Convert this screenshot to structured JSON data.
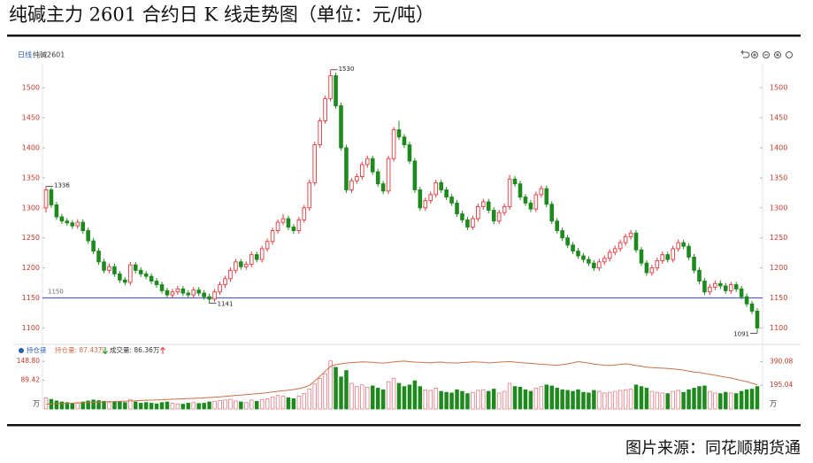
{
  "chart_data": {
    "type": "candlestick",
    "title": "纯碱主力 2601 合约日 K 线走势图（单位：元/吨）",
    "source": "图片来源：同花顺期货通",
    "period": "日线",
    "symbol": "纯碱2601",
    "up_color": "#e0393e",
    "down_color": "#1e8a1e",
    "ylim": [
      1080,
      1540
    ],
    "yticks": [
      1100,
      1150,
      1200,
      1250,
      1300,
      1350,
      1400,
      1450,
      1500
    ],
    "reference_line": {
      "value": 1150,
      "color": "#6262b8"
    },
    "annotations": [
      1530,
      1336,
      1141,
      1091
    ],
    "candles": [
      [
        1300,
        1336,
        1292,
        1330
      ],
      [
        1330,
        1334,
        1300,
        1305
      ],
      [
        1305,
        1310,
        1280,
        1285
      ],
      [
        1285,
        1290,
        1273,
        1278
      ],
      [
        1278,
        1283,
        1270,
        1275
      ],
      [
        1275,
        1280,
        1265,
        1270
      ],
      [
        1270,
        1281,
        1265,
        1276
      ],
      [
        1276,
        1281,
        1257,
        1262
      ],
      [
        1262,
        1267,
        1240,
        1245
      ],
      [
        1245,
        1250,
        1223,
        1228
      ],
      [
        1228,
        1233,
        1205,
        1210
      ],
      [
        1210,
        1215,
        1191,
        1196
      ],
      [
        1196,
        1207,
        1191,
        1202
      ],
      [
        1202,
        1207,
        1185,
        1190
      ],
      [
        1190,
        1195,
        1175,
        1180
      ],
      [
        1180,
        1185,
        1171,
        1176
      ],
      [
        1176,
        1210,
        1171,
        1205
      ],
      [
        1205,
        1210,
        1191,
        1196
      ],
      [
        1196,
        1201,
        1185,
        1190
      ],
      [
        1190,
        1195,
        1181,
        1186
      ],
      [
        1186,
        1191,
        1173,
        1178
      ],
      [
        1178,
        1183,
        1167,
        1172
      ],
      [
        1172,
        1177,
        1157,
        1162
      ],
      [
        1162,
        1167,
        1150,
        1155
      ],
      [
        1155,
        1165,
        1150,
        1160
      ],
      [
        1160,
        1170,
        1155,
        1165
      ],
      [
        1165,
        1170,
        1153,
        1158
      ],
      [
        1158,
        1163,
        1150,
        1155
      ],
      [
        1155,
        1168,
        1150,
        1163
      ],
      [
        1163,
        1168,
        1153,
        1158
      ],
      [
        1158,
        1163,
        1147,
        1152
      ],
      [
        1152,
        1157,
        1141,
        1148
      ],
      [
        1148,
        1165,
        1143,
        1160
      ],
      [
        1160,
        1177,
        1155,
        1172
      ],
      [
        1172,
        1187,
        1167,
        1182
      ],
      [
        1182,
        1201,
        1177,
        1196
      ],
      [
        1196,
        1215,
        1191,
        1210
      ],
      [
        1210,
        1215,
        1197,
        1202
      ],
      [
        1202,
        1211,
        1197,
        1206
      ],
      [
        1206,
        1227,
        1201,
        1222
      ],
      [
        1222,
        1227,
        1209,
        1214
      ],
      [
        1214,
        1237,
        1209,
        1232
      ],
      [
        1232,
        1249,
        1227,
        1244
      ],
      [
        1244,
        1267,
        1239,
        1262
      ],
      [
        1262,
        1281,
        1257,
        1276
      ],
      [
        1276,
        1290,
        1271,
        1282
      ],
      [
        1282,
        1287,
        1263,
        1268
      ],
      [
        1268,
        1273,
        1257,
        1262
      ],
      [
        1262,
        1285,
        1257,
        1280
      ],
      [
        1280,
        1305,
        1275,
        1300
      ],
      [
        1300,
        1347,
        1295,
        1342
      ],
      [
        1342,
        1410,
        1337,
        1405
      ],
      [
        1405,
        1450,
        1400,
        1445
      ],
      [
        1445,
        1487,
        1440,
        1482
      ],
      [
        1482,
        1530,
        1477,
        1520
      ],
      [
        1520,
        1525,
        1465,
        1470
      ],
      [
        1470,
        1475,
        1395,
        1400
      ],
      [
        1400,
        1405,
        1325,
        1330
      ],
      [
        1330,
        1350,
        1325,
        1345
      ],
      [
        1345,
        1357,
        1340,
        1352
      ],
      [
        1352,
        1377,
        1347,
        1372
      ],
      [
        1372,
        1387,
        1367,
        1382
      ],
      [
        1382,
        1387,
        1355,
        1360
      ],
      [
        1360,
        1365,
        1335,
        1340
      ],
      [
        1340,
        1345,
        1323,
        1328
      ],
      [
        1328,
        1387,
        1323,
        1382
      ],
      [
        1382,
        1435,
        1377,
        1430
      ],
      [
        1430,
        1445,
        1413,
        1418
      ],
      [
        1418,
        1423,
        1400,
        1405
      ],
      [
        1405,
        1410,
        1373,
        1378
      ],
      [
        1378,
        1383,
        1325,
        1330
      ],
      [
        1330,
        1335,
        1295,
        1300
      ],
      [
        1300,
        1317,
        1295,
        1312
      ],
      [
        1312,
        1327,
        1307,
        1322
      ],
      [
        1322,
        1347,
        1317,
        1342
      ],
      [
        1342,
        1347,
        1325,
        1330
      ],
      [
        1330,
        1335,
        1313,
        1318
      ],
      [
        1318,
        1323,
        1303,
        1308
      ],
      [
        1308,
        1313,
        1285,
        1290
      ],
      [
        1290,
        1295,
        1275,
        1280
      ],
      [
        1280,
        1285,
        1263,
        1268
      ],
      [
        1268,
        1287,
        1263,
        1282
      ],
      [
        1282,
        1307,
        1277,
        1302
      ],
      [
        1302,
        1315,
        1297,
        1310
      ],
      [
        1310,
        1315,
        1291,
        1296
      ],
      [
        1296,
        1301,
        1273,
        1278
      ],
      [
        1278,
        1297,
        1273,
        1292
      ],
      [
        1292,
        1307,
        1287,
        1302
      ],
      [
        1302,
        1355,
        1297,
        1348
      ],
      [
        1348,
        1353,
        1335,
        1340
      ],
      [
        1340,
        1345,
        1313,
        1318
      ],
      [
        1318,
        1323,
        1303,
        1308
      ],
      [
        1308,
        1313,
        1293,
        1298
      ],
      [
        1298,
        1327,
        1293,
        1322
      ],
      [
        1322,
        1337,
        1317,
        1332
      ],
      [
        1332,
        1337,
        1301,
        1306
      ],
      [
        1306,
        1311,
        1273,
        1278
      ],
      [
        1278,
        1283,
        1257,
        1262
      ],
      [
        1262,
        1267,
        1245,
        1250
      ],
      [
        1250,
        1255,
        1233,
        1238
      ],
      [
        1238,
        1243,
        1223,
        1228
      ],
      [
        1228,
        1233,
        1215,
        1220
      ],
      [
        1220,
        1225,
        1209,
        1214
      ],
      [
        1214,
        1219,
        1203,
        1208
      ],
      [
        1208,
        1213,
        1195,
        1200
      ],
      [
        1200,
        1215,
        1195,
        1210
      ],
      [
        1210,
        1221,
        1205,
        1216
      ],
      [
        1216,
        1231,
        1211,
        1226
      ],
      [
        1226,
        1237,
        1221,
        1232
      ],
      [
        1232,
        1247,
        1227,
        1242
      ],
      [
        1242,
        1257,
        1237,
        1252
      ],
      [
        1252,
        1263,
        1247,
        1258
      ],
      [
        1258,
        1263,
        1225,
        1230
      ],
      [
        1230,
        1235,
        1203,
        1208
      ],
      [
        1208,
        1213,
        1187,
        1192
      ],
      [
        1192,
        1205,
        1187,
        1200
      ],
      [
        1200,
        1217,
        1195,
        1212
      ],
      [
        1212,
        1227,
        1207,
        1222
      ],
      [
        1222,
        1227,
        1209,
        1214
      ],
      [
        1214,
        1237,
        1209,
        1232
      ],
      [
        1232,
        1247,
        1227,
        1242
      ],
      [
        1242,
        1247,
        1231,
        1236
      ],
      [
        1236,
        1241,
        1213,
        1218
      ],
      [
        1218,
        1223,
        1191,
        1196
      ],
      [
        1196,
        1201,
        1173,
        1178
      ],
      [
        1178,
        1183,
        1155,
        1160
      ],
      [
        1160,
        1173,
        1155,
        1168
      ],
      [
        1168,
        1179,
        1163,
        1174
      ],
      [
        1174,
        1179,
        1165,
        1170
      ],
      [
        1170,
        1175,
        1157,
        1162
      ],
      [
        1162,
        1177,
        1157,
        1172
      ],
      [
        1172,
        1177,
        1160,
        1165
      ],
      [
        1165,
        1170,
        1147,
        1152
      ],
      [
        1152,
        1157,
        1135,
        1140
      ],
      [
        1140,
        1145,
        1123,
        1128
      ],
      [
        1128,
        1133,
        1091,
        1100
      ]
    ],
    "volume": {
      "values": [
        35,
        30,
        25,
        22,
        20,
        18,
        20,
        22,
        25,
        28,
        26,
        24,
        20,
        22,
        24,
        20,
        30,
        22,
        18,
        20,
        18,
        16,
        20,
        22,
        18,
        16,
        15,
        18,
        20,
        17,
        18,
        22,
        24,
        26,
        28,
        30,
        25,
        22,
        20,
        28,
        24,
        30,
        32,
        38,
        42,
        40,
        35,
        32,
        40,
        48,
        62,
        78,
        95,
        110,
        150,
        130,
        100,
        120,
        80,
        70,
        75,
        68,
        72,
        65,
        60,
        85,
        95,
        80,
        70,
        75,
        88,
        70,
        60,
        58,
        65,
        55,
        52,
        50,
        60,
        55,
        48,
        52,
        58,
        60,
        55,
        62,
        50,
        55,
        80,
        70,
        68,
        60,
        55,
        65,
        70,
        75,
        72,
        65,
        60,
        58,
        55,
        60,
        52,
        50,
        58,
        55,
        50,
        52,
        55,
        58,
        60,
        62,
        75,
        70,
        65,
        55,
        52,
        50,
        48,
        55,
        58,
        52,
        60,
        65,
        70,
        72,
        55,
        50,
        48,
        52,
        50,
        48,
        55,
        60,
        62,
        70
      ],
      "ylim": [
        0,
        163
      ],
      "yticks": [
        {
          "value": 148.8,
          "label": "148.80"
        },
        89.42
      ],
      "unit": "万"
    },
    "open_interest": {
      "name": "持仓量",
      "color": "#c8734a",
      "values": [
        40,
        42,
        44,
        45,
        46,
        48,
        50,
        52,
        54,
        55,
        56,
        58,
        60,
        62,
        63,
        64,
        66,
        68,
        70,
        72,
        73,
        74,
        76,
        78,
        80,
        82,
        84,
        86,
        88,
        90,
        92,
        95,
        98,
        100,
        104,
        108,
        112,
        115,
        118,
        122,
        126,
        130,
        135,
        140,
        146,
        150,
        155,
        160,
        168,
        178,
        195,
        230,
        270,
        310,
        350,
        365,
        372,
        378,
        382,
        385,
        388,
        386,
        384,
        380,
        378,
        382,
        388,
        392,
        394,
        390,
        386,
        384,
        382,
        380,
        384,
        386,
        382,
        380,
        378,
        382,
        385,
        388,
        386,
        384,
        380,
        382,
        386,
        388,
        390,
        386,
        382,
        378,
        376,
        372,
        368,
        365,
        362,
        360,
        365,
        372,
        380,
        390,
        385,
        378,
        370,
        365,
        360,
        358,
        362,
        368,
        372,
        366,
        358,
        352,
        345,
        340,
        338,
        336,
        334,
        330,
        325,
        320,
        312,
        305,
        300,
        292,
        285,
        278,
        270,
        262,
        255,
        245,
        235,
        225,
        212,
        200
      ],
      "y2lim": [
        0,
        430
      ],
      "y2ticks": [
        390.08,
        195.04
      ]
    },
    "legend": {
      "open_interest": "持仓量: 87.43万",
      "volume": "成交量: 86.36万"
    }
  }
}
